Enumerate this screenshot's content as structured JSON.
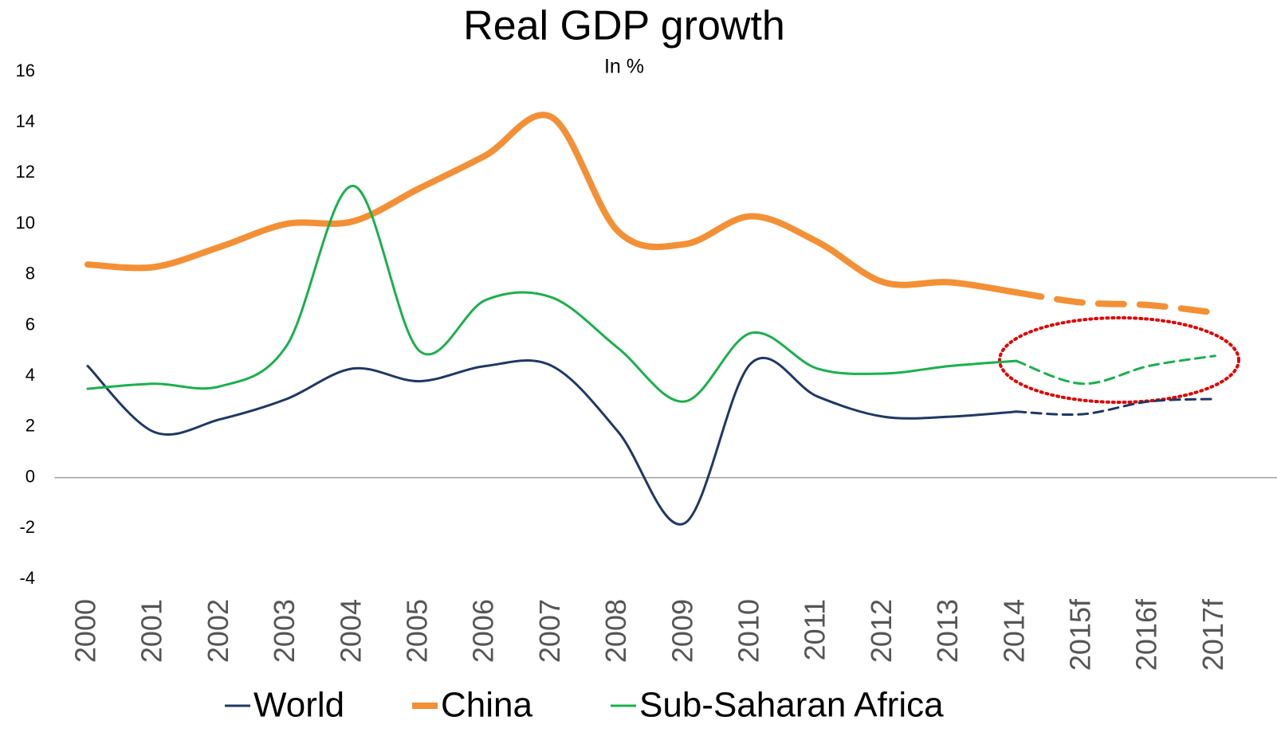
{
  "chart_data": {
    "type": "line",
    "title": "Real GDP growth",
    "subtitle": "In %",
    "categories": [
      "2000",
      "2001",
      "2002",
      "2003",
      "2004",
      "2005",
      "2006",
      "2007",
      "2008",
      "2009",
      "2010",
      "2011",
      "2012",
      "2013",
      "2014",
      "2015f",
      "2016f",
      "2017f"
    ],
    "series": [
      {
        "name": "World",
        "color": "#1f3864",
        "width": 3,
        "values": [
          4.4,
          1.8,
          2.3,
          3.1,
          4.3,
          3.8,
          4.4,
          4.4,
          1.8,
          -1.8,
          4.5,
          3.2,
          2.4,
          2.4,
          2.6,
          2.5,
          3.0,
          3.1
        ]
      },
      {
        "name": "China",
        "color": "#f39035",
        "width": 8,
        "values": [
          8.4,
          8.3,
          9.1,
          10.0,
          10.1,
          11.4,
          12.7,
          14.2,
          9.7,
          9.2,
          10.3,
          9.3,
          7.7,
          7.7,
          7.3,
          6.9,
          6.8,
          6.5
        ]
      },
      {
        "name": "Sub-Saharan Africa",
        "color": "#1ab04c",
        "width": 3,
        "values": [
          3.5,
          3.7,
          3.6,
          5.2,
          11.5,
          5.0,
          7.0,
          7.1,
          5.1,
          3.0,
          5.7,
          4.3,
          4.1,
          4.4,
          4.6,
          3.7,
          4.4,
          4.8
        ]
      }
    ],
    "ylim": [
      -4,
      16
    ],
    "yticks": [
      -4,
      -2,
      0,
      2,
      4,
      6,
      8,
      10,
      12,
      14,
      16
    ],
    "grid": false,
    "legend": "bottom"
  }
}
